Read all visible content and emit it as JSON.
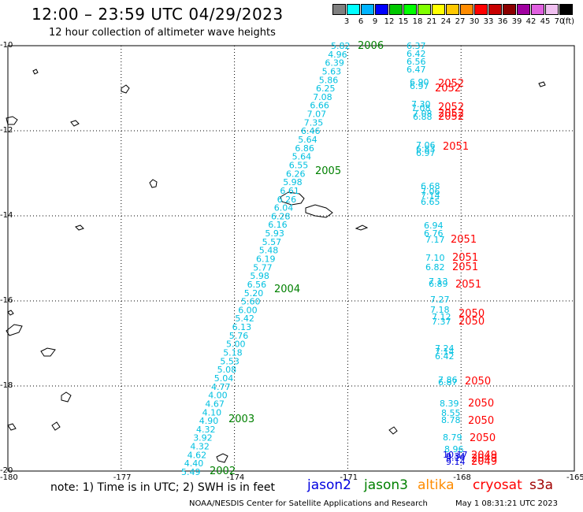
{
  "header": {
    "title": "12:00 – 23:59 UTC 04/29/2023",
    "subtitle": "12 hour collection of altimeter wave heights"
  },
  "colorbar": {
    "unit": "(ft)",
    "colors": [
      "#808080",
      "#00ffff",
      "#00b4ff",
      "#0000ff",
      "#00c800",
      "#00ff00",
      "#80ff00",
      "#ffff00",
      "#ffc800",
      "#ff8c00",
      "#ff0000",
      "#c80000",
      "#8b0000",
      "#a000a0",
      "#e060e0",
      "#f0c0f0",
      "#000000"
    ],
    "labels": [
      "3",
      "6",
      "9",
      "12",
      "15",
      "18",
      "21",
      "24",
      "27",
      "30",
      "33",
      "36",
      "39",
      "42",
      "45",
      "70"
    ]
  },
  "axes": {
    "lon_labels": [
      "-180",
      "-177",
      "-174",
      "-171",
      "-168",
      "-165"
    ],
    "lat_labels": [
      "-10",
      "-12",
      "-14",
      "-16",
      "-18",
      "-20"
    ],
    "lon_range": [
      -180,
      -165
    ],
    "lat_range": [
      -20,
      -10
    ]
  },
  "tracks": [
    {
      "satellite": "jason3",
      "color": "#00c0e0",
      "label_color": "#008000",
      "passes": [
        {
          "time": "2006",
          "values": [
            "5.82",
            "4.96",
            "6.39",
            "5.63",
            "5.86",
            "6.25",
            "7.08",
            "6.66",
            "7.07",
            "7.35",
            "6.46",
            "5.64",
            "6.86",
            "5.64",
            "6.55",
            "6.26",
            "5.98",
            "6.61",
            "6.26",
            "6.04",
            "6.28",
            "6.16",
            "5.93",
            "5.57",
            "5.48",
            "6.19",
            "5.77",
            "5.98",
            "6.56",
            "5.20"
          ]
        },
        {
          "time": "2005",
          "values": []
        },
        {
          "time": "2004",
          "values": [
            "5.60",
            "6.00",
            "5.42",
            "6.13",
            "5.76",
            "5.00",
            "5.18",
            "5.53",
            "5.08",
            "5.04",
            "4.77",
            "4.00",
            "4.67",
            "4.10",
            "4.90",
            "4.32",
            "3.92",
            "4.32",
            "4.62",
            "4.40",
            "5.49"
          ]
        },
        {
          "time": "2003",
          "values": []
        },
        {
          "time": "2002",
          "values": []
        }
      ]
    },
    {
      "satellite": "cryosat",
      "color": "#00c0e0",
      "label_color": "#ff0000",
      "passes": [
        {
          "time": "2052",
          "values": [
            "6.37",
            "6.42",
            "6.56",
            "6.47",
            "6.90",
            "6.97",
            "7.30",
            "7.08",
            "7.08",
            "6.88"
          ]
        },
        {
          "time": "2051",
          "values": [
            "7.06",
            "6.83",
            "6.97",
            "6.68",
            "7.06",
            "7.14",
            "6.65",
            "6.94",
            "6.76",
            "7.17",
            "7.10",
            "6.82",
            "7.13",
            "6.89"
          ]
        },
        {
          "time": "2050",
          "values": [
            "7.27",
            "7.18",
            "7.12",
            "7.37",
            "7.24",
            "7.14",
            "6.42",
            "7.86",
            "6.87",
            "8.39",
            "8.55",
            "8.78",
            "8.79",
            "8.96"
          ]
        },
        {
          "time": "2049",
          "values": [
            "10.17",
            "9.34",
            "9.14",
            "9.14"
          ]
        }
      ]
    }
  ],
  "note": "note: 1) Time is in UTC; 2) SWH is in feet",
  "legend": [
    {
      "name": "jason2",
      "color": "#0000e0"
    },
    {
      "name": "jason3",
      "color": "#008000"
    },
    {
      "name": "altika",
      "color": "#ff8c00"
    },
    {
      "name": "cryosat",
      "color": "#ff0000"
    },
    {
      "name": "s3a",
      "color": "#a00000"
    }
  ],
  "footer": {
    "credit": "NOAA/NESDIS Center for Satellite Applications and Research",
    "timestamp": "May  1 08:31:21 UTC 2023"
  }
}
